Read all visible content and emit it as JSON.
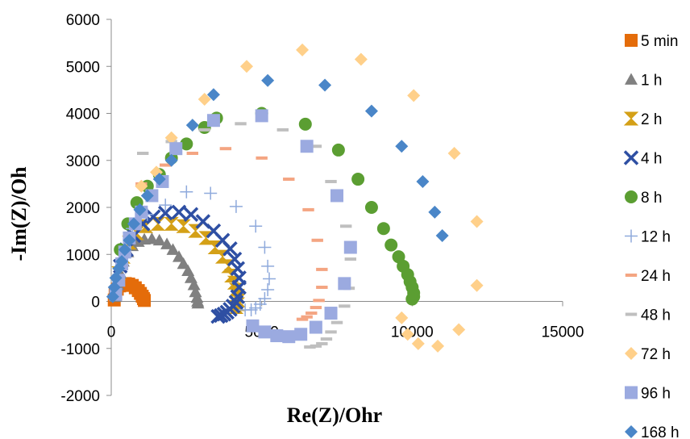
{
  "chart_data": {
    "type": "scatter",
    "title": "",
    "xlabel": "Re(Z)/Ohr",
    "ylabel": "-Im(Z)/Oh",
    "xlim": [
      0,
      15000
    ],
    "ylim": [
      -2000,
      6000
    ],
    "xticks": [
      0,
      5000,
      10000,
      15000
    ],
    "yticks": [
      6000,
      5000,
      4000,
      3000,
      2000,
      1000,
      0,
      -1000,
      -2000
    ],
    "grid": false,
    "legend_position": "right",
    "series": [
      {
        "name": "5 min",
        "color": "#E46C0A",
        "marker": "square",
        "points": [
          [
            100,
            30
          ],
          [
            130,
            150
          ],
          [
            200,
            260
          ],
          [
            280,
            330
          ],
          [
            370,
            370
          ],
          [
            470,
            380
          ],
          [
            580,
            370
          ],
          [
            700,
            340
          ],
          [
            800,
            290
          ],
          [
            900,
            230
          ],
          [
            970,
            170
          ],
          [
            1030,
            110
          ],
          [
            1070,
            60
          ],
          [
            1100,
            20
          ]
        ]
      },
      {
        "name": "1 h",
        "color": "#808080",
        "marker": "triangle",
        "points": [
          [
            150,
            100
          ],
          [
            220,
            350
          ],
          [
            300,
            600
          ],
          [
            400,
            850
          ],
          [
            550,
            1050
          ],
          [
            700,
            1180
          ],
          [
            900,
            1270
          ],
          [
            1100,
            1320
          ],
          [
            1350,
            1330
          ],
          [
            1600,
            1300
          ],
          [
            1850,
            1220
          ],
          [
            2050,
            1100
          ],
          [
            2250,
            950
          ],
          [
            2400,
            800
          ],
          [
            2550,
            650
          ],
          [
            2650,
            500
          ],
          [
            2750,
            350
          ],
          [
            2800,
            200
          ],
          [
            2850,
            80
          ],
          [
            2870,
            0
          ],
          [
            2880,
            -40
          ]
        ]
      },
      {
        "name": "2 h",
        "color": "#D4A017",
        "marker": "hourglass",
        "points": [
          [
            250,
            600
          ],
          [
            400,
            950
          ],
          [
            600,
            1250
          ],
          [
            850,
            1450
          ],
          [
            1150,
            1600
          ],
          [
            1550,
            1650
          ],
          [
            2000,
            1650
          ],
          [
            2400,
            1600
          ],
          [
            2800,
            1500
          ],
          [
            3150,
            1350
          ],
          [
            3450,
            1150
          ],
          [
            3700,
            950
          ],
          [
            3900,
            750
          ],
          [
            4000,
            550
          ],
          [
            4100,
            400
          ],
          [
            4150,
            250
          ],
          [
            4200,
            120
          ],
          [
            4220,
            20
          ],
          [
            4200,
            -60
          ],
          [
            4150,
            -120
          ]
        ]
      },
      {
        "name": "4 h",
        "color": "#2E4FA3",
        "marker": "x",
        "points": [
          [
            300,
            750
          ],
          [
            500,
            1100
          ],
          [
            750,
            1400
          ],
          [
            1050,
            1650
          ],
          [
            1400,
            1800
          ],
          [
            1800,
            1880
          ],
          [
            2250,
            1900
          ],
          [
            2650,
            1850
          ],
          [
            3050,
            1700
          ],
          [
            3400,
            1500
          ],
          [
            3700,
            1300
          ],
          [
            3950,
            1120
          ],
          [
            4100,
            900
          ],
          [
            4200,
            700
          ],
          [
            4250,
            500
          ],
          [
            4250,
            300
          ],
          [
            4200,
            100
          ],
          [
            4150,
            -20
          ],
          [
            4050,
            -100
          ],
          [
            3950,
            -170
          ],
          [
            3850,
            -230
          ],
          [
            3750,
            -270
          ],
          [
            3650,
            -300
          ],
          [
            3550,
            -320
          ]
        ]
      },
      {
        "name": "8 h",
        "color": "#5B9E32",
        "marker": "circle",
        "points": [
          [
            300,
            1100
          ],
          [
            550,
            1650
          ],
          [
            850,
            2100
          ],
          [
            1200,
            2450
          ],
          [
            1600,
            2700
          ],
          [
            2000,
            3050
          ],
          [
            2500,
            3350
          ],
          [
            3100,
            3700
          ],
          [
            3500,
            3900
          ],
          [
            5000,
            4000
          ],
          [
            6450,
            3770
          ],
          [
            7550,
            3220
          ],
          [
            8200,
            2600
          ],
          [
            8650,
            2000
          ],
          [
            9050,
            1550
          ],
          [
            9300,
            1200
          ],
          [
            9550,
            950
          ],
          [
            9700,
            750
          ],
          [
            9850,
            570
          ],
          [
            9930,
            420
          ],
          [
            10000,
            300
          ],
          [
            10050,
            180
          ],
          [
            10050,
            100
          ],
          [
            10000,
            50
          ]
        ]
      },
      {
        "name": "12 h",
        "color": "#8FAADC",
        "marker": "plus",
        "points": [
          [
            700,
            1550
          ],
          [
            1200,
            1850
          ],
          [
            1800,
            2050
          ],
          [
            2500,
            2330
          ],
          [
            3300,
            2300
          ],
          [
            4150,
            2020
          ],
          [
            4800,
            1600
          ],
          [
            5100,
            1150
          ],
          [
            5200,
            750
          ],
          [
            5250,
            480
          ],
          [
            5200,
            250
          ],
          [
            5100,
            60
          ],
          [
            4950,
            -60
          ],
          [
            4800,
            -140
          ],
          [
            4650,
            -180
          ],
          [
            4450,
            -180
          ]
        ]
      },
      {
        "name": "24 h",
        "color": "#F4A582",
        "marker": "dash",
        "points": [
          [
            1000,
            2500
          ],
          [
            1800,
            2900
          ],
          [
            2700,
            3150
          ],
          [
            3800,
            3250
          ],
          [
            5000,
            3050
          ],
          [
            5900,
            2600
          ],
          [
            6550,
            1950
          ],
          [
            6850,
            1300
          ],
          [
            7000,
            680
          ],
          [
            7000,
            300
          ],
          [
            6900,
            20
          ],
          [
            6800,
            -130
          ],
          [
            6650,
            -250
          ],
          [
            6500,
            -330
          ],
          [
            6350,
            -380
          ]
        ]
      },
      {
        "name": "48 h",
        "color": "#BFBFBF",
        "marker": "dash",
        "points": [
          [
            1050,
            3150
          ],
          [
            2000,
            3400
          ],
          [
            3100,
            3650
          ],
          [
            4300,
            3780
          ],
          [
            5700,
            3650
          ],
          [
            6800,
            3300
          ],
          [
            7300,
            2550
          ],
          [
            7800,
            1600
          ],
          [
            7950,
            900
          ],
          [
            7900,
            280
          ],
          [
            7750,
            -100
          ],
          [
            7500,
            -450
          ],
          [
            7300,
            -650
          ],
          [
            7150,
            -800
          ],
          [
            7000,
            -900
          ],
          [
            6800,
            -950
          ],
          [
            6600,
            -970
          ]
        ]
      },
      {
        "name": "72 h",
        "color": "#FFD08A",
        "marker": "diamond",
        "points": [
          [
            1000,
            2450
          ],
          [
            1500,
            2750
          ],
          [
            2000,
            3480
          ],
          [
            3100,
            4300
          ],
          [
            4500,
            5000
          ],
          [
            6350,
            5350
          ],
          [
            8300,
            5150
          ],
          [
            10050,
            4380
          ],
          [
            11400,
            3150
          ],
          [
            12150,
            1700
          ],
          [
            12150,
            340
          ],
          [
            11550,
            -600
          ],
          [
            10850,
            -950
          ],
          [
            10200,
            -900
          ],
          [
            9850,
            -700
          ],
          [
            9650,
            -350
          ]
        ]
      },
      {
        "name": "96 h",
        "color": "#9BAAE0",
        "marker": "square",
        "points": [
          [
            150,
            150
          ],
          [
            250,
            450
          ],
          [
            350,
            800
          ],
          [
            450,
            1050
          ],
          [
            600,
            1350
          ],
          [
            800,
            1650
          ],
          [
            1000,
            1900
          ],
          [
            1350,
            2250
          ],
          [
            1700,
            2550
          ],
          [
            2150,
            3250
          ],
          [
            3400,
            3850
          ],
          [
            5000,
            3950
          ],
          [
            6500,
            3300
          ],
          [
            7500,
            2250
          ],
          [
            7950,
            1150
          ],
          [
            7750,
            380
          ],
          [
            7300,
            -250
          ],
          [
            6800,
            -550
          ],
          [
            6300,
            -700
          ],
          [
            5900,
            -750
          ],
          [
            5500,
            -730
          ],
          [
            5100,
            -650
          ],
          [
            4700,
            -520
          ]
        ]
      },
      {
        "name": "168 h",
        "color": "#4A86C8",
        "marker": "diamond",
        "points": [
          [
            50,
            100
          ],
          [
            100,
            300
          ],
          [
            150,
            500
          ],
          [
            250,
            700
          ],
          [
            350,
            850
          ],
          [
            450,
            1100
          ],
          [
            600,
            1300
          ],
          [
            750,
            1650
          ],
          [
            950,
            1950
          ],
          [
            1200,
            2250
          ],
          [
            1600,
            2600
          ],
          [
            2000,
            3000
          ],
          [
            2700,
            3750
          ],
          [
            3400,
            4400
          ],
          [
            5200,
            4700
          ],
          [
            7100,
            4600
          ],
          [
            8650,
            4050
          ],
          [
            9650,
            3300
          ],
          [
            10350,
            2550
          ],
          [
            10750,
            1900
          ],
          [
            11000,
            1400
          ]
        ]
      }
    ]
  }
}
